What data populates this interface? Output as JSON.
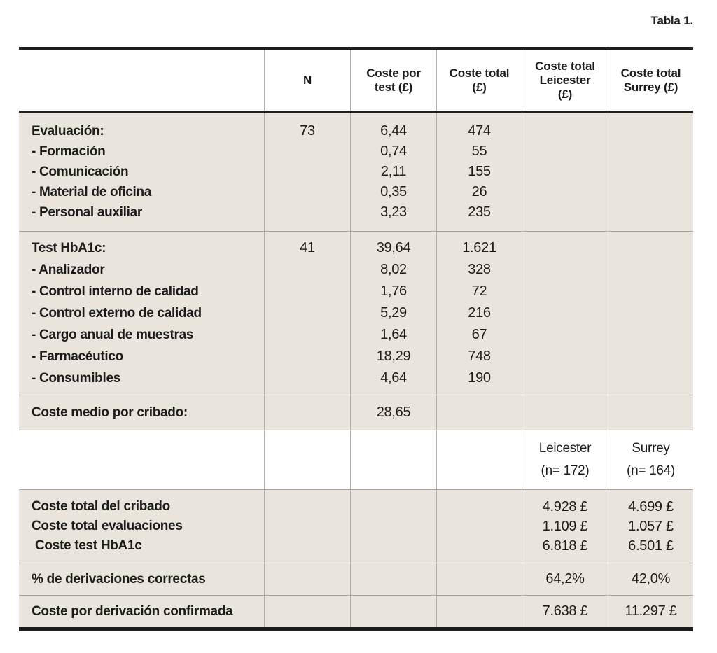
{
  "title": "Tabla 1.",
  "header": {
    "cols": [
      "",
      "N",
      "Coste por\ntest (£)",
      "Coste total\n(£)",
      "Coste total\nLeicester\n(£)",
      "Coste total\nSurrey (£)"
    ]
  },
  "sections": {
    "evaluacion": {
      "label": "Evaluación:\n- Formación\n- Comunicación\n- Material de oficina\n- Personal auxiliar",
      "n": "73",
      "coste_por_test": "6,44\n0,74\n2,11\n0,35\n3,23",
      "coste_total": "474\n55\n155\n26\n235",
      "leicester": "",
      "surrey": ""
    },
    "test_hba1c": {
      "label": "Test HbA1c:\n- Analizador\n- Control interno de calidad\n- Control externo de calidad\n- Cargo anual de muestras\n- Farmacéutico\n- Consumibles",
      "n": "41",
      "coste_por_test": "39,64\n8,02\n1,76\n5,29\n1,64\n18,29\n4,64",
      "coste_total": "1.621\n328\n72\n216\n67\n748\n190",
      "leicester": "",
      "surrey": ""
    },
    "coste_medio": {
      "label": "Coste medio por cribado:",
      "n": "",
      "coste_por_test": "28,65",
      "coste_total": "",
      "leicester": "",
      "surrey": ""
    },
    "subheader": {
      "label": "",
      "n": "",
      "coste_por_test": "",
      "coste_total": "",
      "leicester": "Leicester\n(n= 172)",
      "surrey": "Surrey\n(n= 164)"
    },
    "totales": {
      "label": "Coste total del cribado\nCoste total evaluaciones\n Coste test HbA1c",
      "n": "",
      "coste_por_test": "",
      "coste_total": "",
      "leicester": "4.928 £\n1.109 £\n6.818 £",
      "surrey": "4.699 £\n1.057 £\n6.501 £"
    },
    "derivaciones": {
      "label": "% de derivaciones correctas",
      "n": "",
      "coste_por_test": "",
      "coste_total": "",
      "leicester": "64,2%",
      "surrey": "42,0%"
    },
    "coste_derivacion": {
      "label": "Coste por derivación confirmada",
      "n": "",
      "coste_por_test": "",
      "coste_total": "",
      "leicester": "7.638 £",
      "surrey": "11.297 £"
    }
  }
}
